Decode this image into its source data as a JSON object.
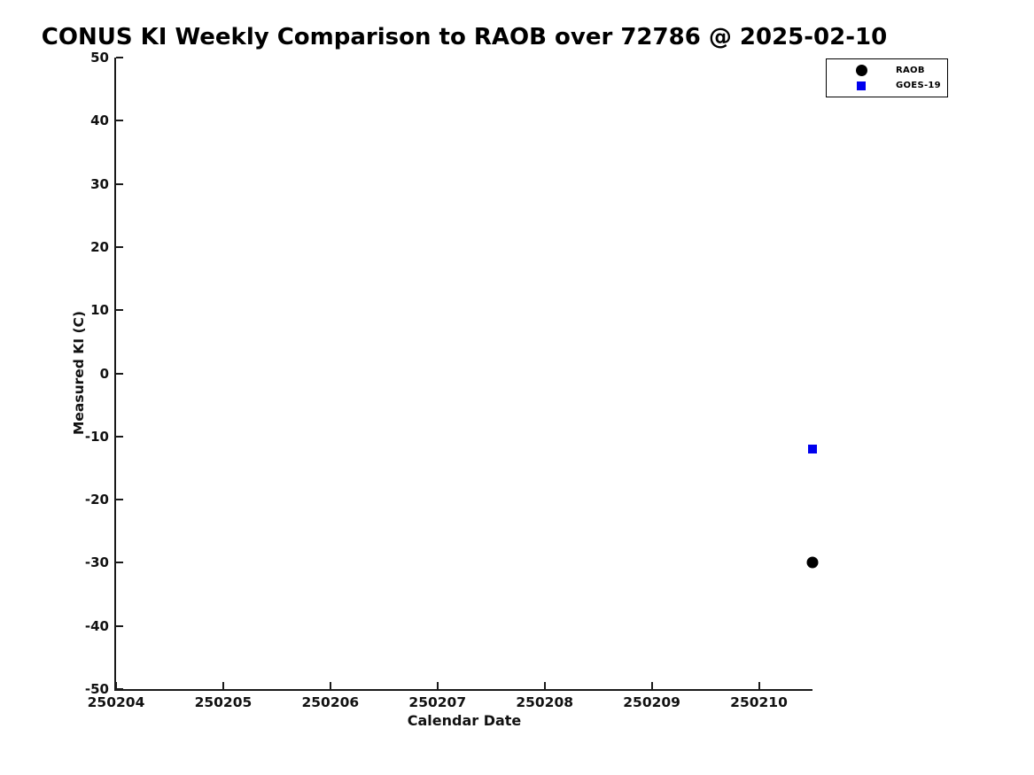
{
  "page": {
    "background": "#ffffff"
  },
  "chart_data": {
    "type": "scatter",
    "title": "CONUS KI Weekly Comparison to RAOB over 72786 @ 2025-02-10",
    "xlabel": "Calendar Date",
    "ylabel": "Measured KI (C)",
    "xlim": [
      250204,
      250210.5
    ],
    "ylim": [
      -50,
      50
    ],
    "grid": false,
    "axis_color": "#1a1a1a",
    "text_color": "#111111",
    "x_ticks": [
      {
        "value": 250204,
        "label": "250204"
      },
      {
        "value": 250205,
        "label": "250205"
      },
      {
        "value": 250206,
        "label": "250206"
      },
      {
        "value": 250207,
        "label": "250207"
      },
      {
        "value": 250208,
        "label": "250208"
      },
      {
        "value": 250209,
        "label": "250209"
      },
      {
        "value": 250210,
        "label": "250210"
      }
    ],
    "y_ticks": [
      {
        "value": -50,
        "label": "-50"
      },
      {
        "value": -40,
        "label": "-40"
      },
      {
        "value": -30,
        "label": "-30"
      },
      {
        "value": -20,
        "label": "-20"
      },
      {
        "value": -10,
        "label": "-10"
      },
      {
        "value": 0,
        "label": "0"
      },
      {
        "value": 10,
        "label": "10"
      },
      {
        "value": 20,
        "label": "20"
      },
      {
        "value": 30,
        "label": "30"
      },
      {
        "value": 40,
        "label": "40"
      },
      {
        "value": 50,
        "label": "50"
      }
    ],
    "legend": {
      "position": "outside-top-right",
      "border_color": "#000000",
      "background": "#ffffff",
      "entries": [
        "RAOB",
        "GOES-19"
      ]
    },
    "series": [
      {
        "name": "RAOB",
        "marker": "circle",
        "color": "#000000",
        "points": [
          {
            "x": 250210.5,
            "y": -29.9
          }
        ]
      },
      {
        "name": "GOES-19",
        "marker": "square",
        "color": "#0000ee",
        "points": [
          {
            "x": 250210.5,
            "y": -12.0
          }
        ]
      }
    ]
  }
}
